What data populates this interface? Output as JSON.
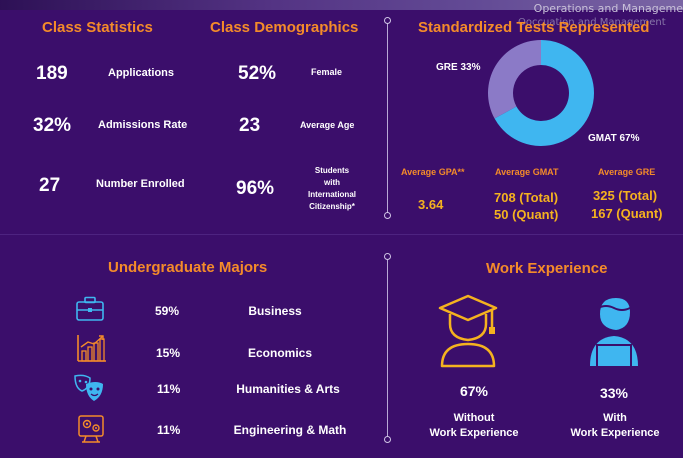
{
  "overlay": {
    "top_right_text": "Operations and Manageme",
    "faded_text": "Ooccuation and Management"
  },
  "class_statistics": {
    "heading": "Class Statistics",
    "items": [
      {
        "value": "189",
        "label": "Applications"
      },
      {
        "value": "32%",
        "label": "Admissions Rate"
      },
      {
        "value": "27",
        "label": "Number Enrolled"
      }
    ]
  },
  "class_demographics": {
    "heading": "Class Demographics",
    "items": [
      {
        "value": "52%",
        "label": "Female"
      },
      {
        "value": "23",
        "label": "Average Age"
      },
      {
        "value": "96%",
        "label_lines": [
          "Students",
          "with",
          "International",
          "Citizenship*"
        ]
      }
    ]
  },
  "standardized_tests": {
    "heading": "Standardized Tests Represented",
    "gre_label": "GRE 33%",
    "gmat_label": "GMAT 67%",
    "averages": {
      "gpa_header": "Average GPA**",
      "gmat_header": "Average GMAT",
      "gre_header": "Average GRE",
      "gpa_value": "3.64",
      "gmat_total": "708 (Total)",
      "gmat_quant": "50 (Quant)",
      "gre_total": "325 (Total)",
      "gre_quant": "167 (Quant)"
    },
    "colors": {
      "gmat": "#3fb6f0",
      "gre": "#8b7ac7"
    }
  },
  "chart_data": {
    "type": "pie",
    "categories": [
      "GRE",
      "GMAT"
    ],
    "values": [
      33,
      67
    ],
    "title": "Standardized Tests Represented"
  },
  "undergraduate_majors": {
    "heading": "Undergraduate Majors",
    "items": [
      {
        "icon": "briefcase-icon",
        "pct": "59%",
        "name": "Business"
      },
      {
        "icon": "growth-chart-icon",
        "pct": "15%",
        "name": "Economics"
      },
      {
        "icon": "theater-masks-icon",
        "pct": "11%",
        "name": "Humanities & Arts"
      },
      {
        "icon": "engineering-gears-icon",
        "pct": "11%",
        "name": "Engineering & Math"
      }
    ]
  },
  "work_experience": {
    "heading": "Work Experience",
    "without": {
      "pct": "67%",
      "line1": "Without",
      "line2": "Work Experience"
    },
    "with": {
      "pct": "33%",
      "line1": "With",
      "line2": "Work Experience"
    }
  }
}
